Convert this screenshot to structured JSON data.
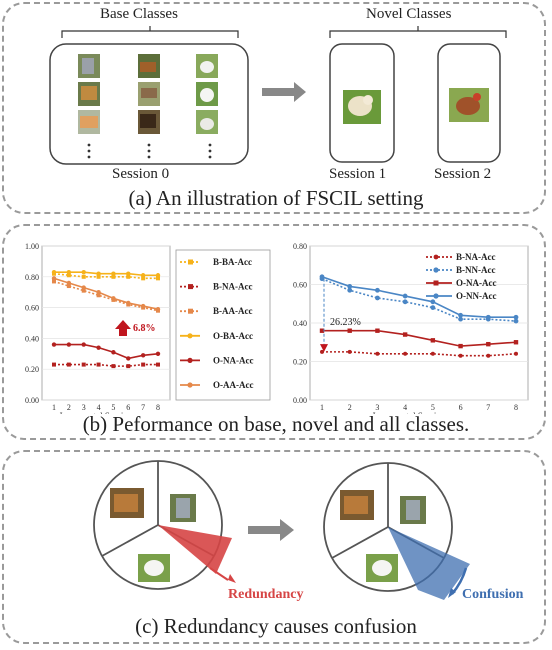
{
  "panel_a": {
    "base_classes_label": "Base Classes",
    "novel_classes_label": "Novel Classes",
    "session0_label": "Session 0",
    "session1_label": "Session 1",
    "session2_label": "Session 2",
    "caption": "(a) An illustration of FSCIL setting"
  },
  "panel_b": {
    "caption": "(b) Peformance on base, novel and all classes.",
    "legend_left": [
      {
        "label": "B-BA-Acc",
        "color": "#f6b21a",
        "style": "dotted"
      },
      {
        "label": "B-NA-Acc",
        "color": "#b3211f",
        "style": "dotted"
      },
      {
        "label": "B-AA-Acc",
        "color": "#e5884a",
        "style": "dotted"
      },
      {
        "label": "O-BA-Acc",
        "color": "#f6b21a",
        "style": "solid"
      },
      {
        "label": "O-NA-Acc",
        "color": "#b3211f",
        "style": "solid"
      },
      {
        "label": "O-AA-Acc",
        "color": "#e5884a",
        "style": "solid"
      }
    ],
    "legend_right": [
      {
        "label": "B-NA-Acc",
        "color": "#b3211f",
        "style": "dotted"
      },
      {
        "label": "B-NN-Acc",
        "color": "#4a86c5",
        "style": "dotted"
      },
      {
        "label": "O-NA-Acc",
        "color": "#b3211f",
        "style": "solid"
      },
      {
        "label": "O-NN-Acc",
        "color": "#4a86c5",
        "style": "solid"
      }
    ],
    "annotation_left": "6.8%",
    "annotation_right": "26.23%"
  },
  "chart_data": [
    {
      "type": "line",
      "xlabel": "Incremental Session",
      "ylabel": "",
      "x": [
        1,
        2,
        3,
        4,
        5,
        6,
        7,
        8
      ],
      "ylim": [
        0,
        1.0
      ],
      "yticks": [
        "0.00",
        "0.20",
        "0.40",
        "0.60",
        "0.80",
        "1.00"
      ],
      "series": [
        {
          "name": "B-BA-Acc",
          "values": [
            0.82,
            0.81,
            0.8,
            0.8,
            0.8,
            0.8,
            0.79,
            0.79
          ]
        },
        {
          "name": "B-NA-Acc",
          "values": [
            0.23,
            0.23,
            0.23,
            0.23,
            0.22,
            0.22,
            0.23,
            0.23
          ]
        },
        {
          "name": "B-AA-Acc",
          "values": [
            0.77,
            0.74,
            0.71,
            0.68,
            0.65,
            0.62,
            0.6,
            0.58
          ]
        },
        {
          "name": "O-BA-Acc",
          "values": [
            0.83,
            0.83,
            0.83,
            0.82,
            0.82,
            0.82,
            0.81,
            0.81
          ]
        },
        {
          "name": "O-NA-Acc",
          "values": [
            0.36,
            0.36,
            0.36,
            0.34,
            0.31,
            0.27,
            0.29,
            0.3
          ]
        },
        {
          "name": "O-AA-Acc",
          "values": [
            0.79,
            0.76,
            0.73,
            0.7,
            0.66,
            0.63,
            0.61,
            0.59
          ]
        }
      ]
    },
    {
      "type": "line",
      "xlabel": "Incremental Session",
      "ylabel": "",
      "x": [
        1,
        2,
        3,
        4,
        5,
        6,
        7,
        8
      ],
      "ylim": [
        0,
        0.8
      ],
      "yticks": [
        "0.00",
        "0.20",
        "0.40",
        "0.60",
        "0.80"
      ],
      "series": [
        {
          "name": "B-NA-Acc",
          "values": [
            0.25,
            0.25,
            0.24,
            0.24,
            0.24,
            0.23,
            0.23,
            0.24
          ]
        },
        {
          "name": "B-NN-Acc",
          "values": [
            0.63,
            0.57,
            0.53,
            0.51,
            0.48,
            0.42,
            0.42,
            0.41
          ]
        },
        {
          "name": "O-NA-Acc",
          "values": [
            0.36,
            0.36,
            0.36,
            0.34,
            0.31,
            0.28,
            0.29,
            0.3
          ]
        },
        {
          "name": "O-NN-Acc",
          "values": [
            0.64,
            0.59,
            0.57,
            0.54,
            0.51,
            0.44,
            0.43,
            0.43
          ]
        }
      ]
    }
  ],
  "panel_c": {
    "redundancy_label": "Redundancy",
    "confusion_label": "Confusion",
    "caption": "(c) Redundancy causes confusion"
  },
  "colors": {
    "redundancy": "#d64545",
    "confusion": "#3f6fb0"
  }
}
